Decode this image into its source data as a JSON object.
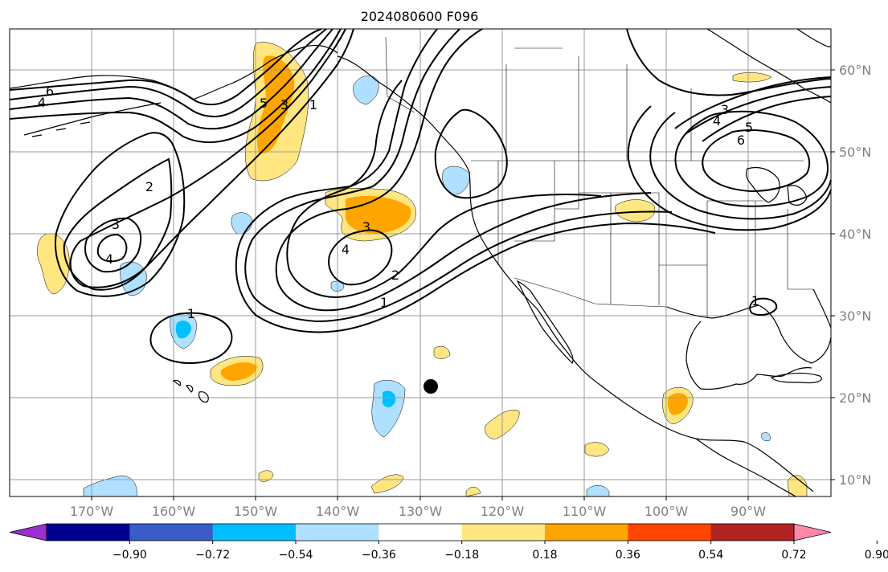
{
  "title": "2024080600 F096",
  "lon_ticks": [
    "170°W",
    "160°W",
    "150°W",
    "140°W",
    "130°W",
    "120°W",
    "110°W",
    "100°W",
    "90°W"
  ],
  "lat_ticks": [
    "60°N",
    "50°N",
    "40°N",
    "30°N",
    "20°N",
    "10°N"
  ],
  "colorbar": {
    "tick_labels": [
      "−0.90",
      "−0.72",
      "−0.54",
      "−0.36",
      "−0.18",
      "0.18",
      "0.36",
      "0.54",
      "0.72",
      "0.90"
    ],
    "colors": [
      "#9b30d0",
      "#000090",
      "#3a5cc8",
      "#00bfff",
      "#b0e0ff",
      "#ffffff",
      "#ffe680",
      "#ffa500",
      "#ff4500",
      "#b22222",
      "#ff88aa"
    ]
  },
  "contour_labels": {
    "west_6": "6",
    "west_4": "4",
    "west_2": "2",
    "west_3": "3",
    "west_4b": "4",
    "gulf_5": "5",
    "gulf_3": "3",
    "gulf_1": "1",
    "hawaii_1": "1",
    "mid_4": "4",
    "mid_3": "3",
    "mid_2": "2",
    "mid_1": "1",
    "east_3": "3",
    "east_4": "4",
    "east_5": "5",
    "east_6": "6",
    "texas_1": "1"
  },
  "marker_color": "#000000",
  "colors": {
    "light_yellow": "#ffe680",
    "orange": "#ffa500",
    "light_blue": "#b0e0ff",
    "deep_sky_blue": "#00bfff",
    "grid": "#9a9a9a",
    "tick_text": "#808080"
  }
}
